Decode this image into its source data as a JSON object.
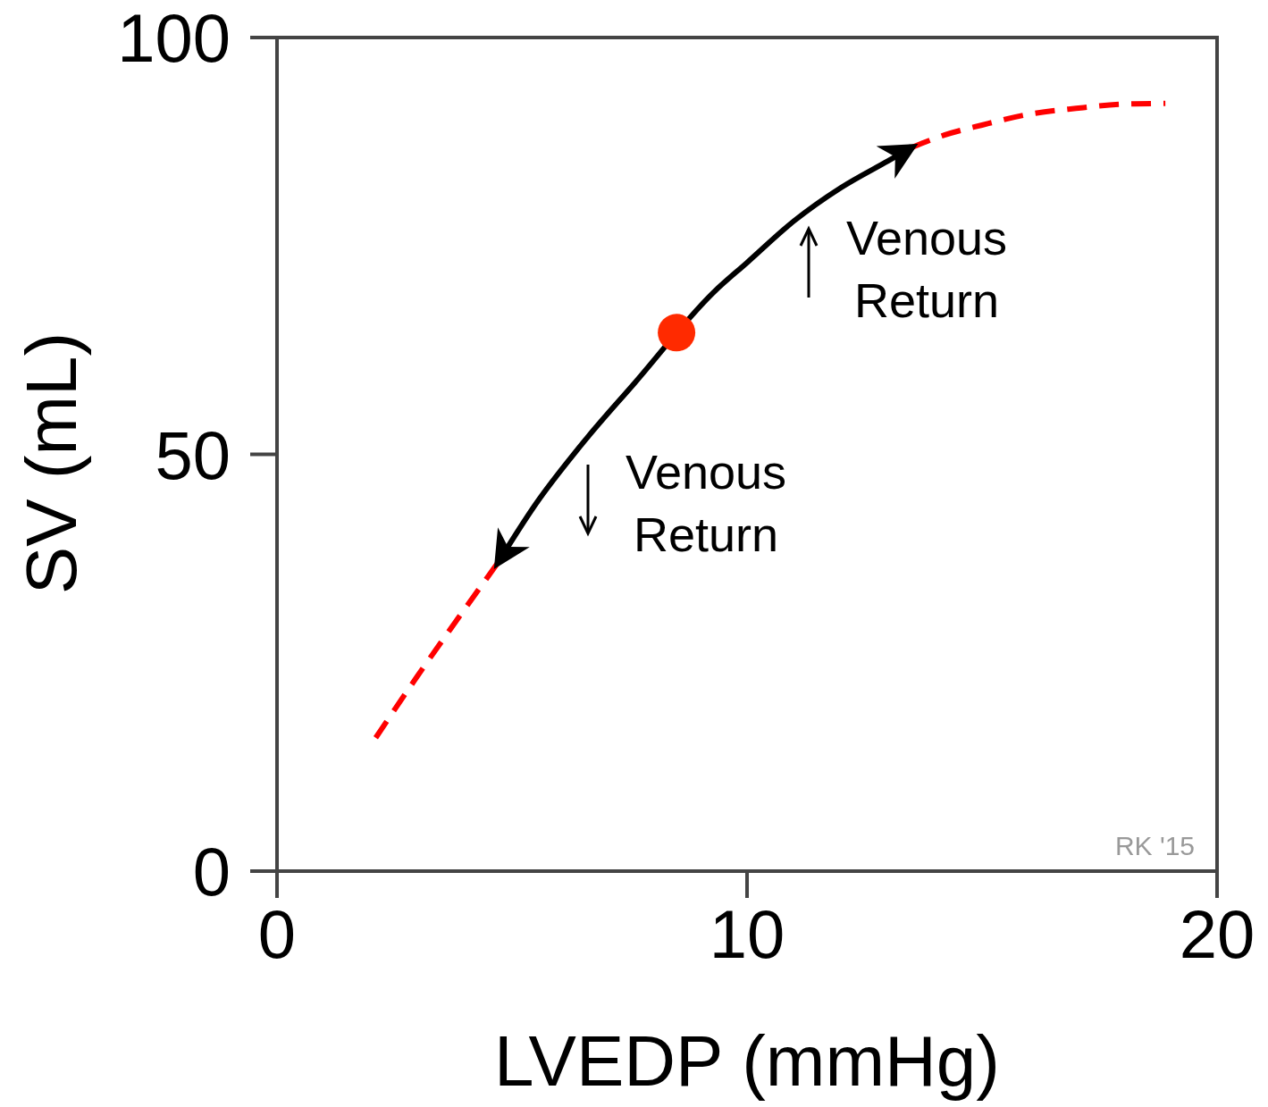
{
  "chart_data": {
    "type": "line",
    "xlabel": "LVEDP (mmHg)",
    "ylabel": "SV (mL)",
    "xlim": [
      0,
      20
    ],
    "ylim": [
      0,
      100
    ],
    "xticks": [
      0,
      10,
      20
    ],
    "yticks": [
      0,
      50,
      100
    ],
    "grid": false,
    "series": [
      {
        "color": "#ff0000",
        "line_style": "dashed",
        "x": [
          2.1,
          3,
          4,
          4.7,
          9,
          13.5,
          14.2,
          15,
          16,
          17,
          18,
          18.9
        ],
        "values": [
          16,
          23.5,
          31.5,
          37,
          null,
          86.8,
          88.3,
          89.5,
          90.8,
          91.5,
          92,
          92.1
        ]
      },
      {
        "color": "#000000",
        "line_style": "solid",
        "x": [
          4.7,
          5.5,
          6.6,
          7.6,
          9.3,
          10,
          11,
          12,
          13,
          13.5
        ],
        "values": [
          37,
          44,
          52,
          58.5,
          69.5,
          73,
          78,
          82,
          85.2,
          86.8
        ]
      },
      {
        "type": "scatter",
        "color": "#ff2a00",
        "marker": "circle",
        "x": [
          8.5
        ],
        "values": [
          64.6
        ]
      }
    ],
    "annotations": [
      "Venous Return",
      "Venous Return",
      "RK '15"
    ]
  }
}
